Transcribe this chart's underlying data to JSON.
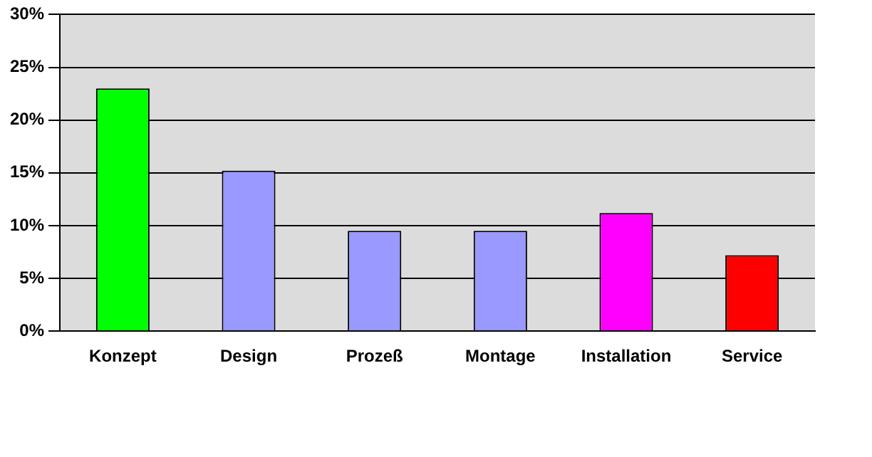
{
  "chart_data": {
    "type": "bar",
    "categories": [
      "Konzept",
      "Design",
      "Prozeß",
      "Montage",
      "Installation",
      "Service"
    ],
    "values": [
      23,
      15.2,
      9.5,
      9.5,
      11.2,
      7.2
    ],
    "colors": [
      "#00ff00",
      "#9999ff",
      "#9999ff",
      "#9999ff",
      "#ff00ff",
      "#ff0000"
    ],
    "ylim": [
      0,
      30
    ],
    "yticks": [
      {
        "value": 0,
        "label": "0%"
      },
      {
        "value": 5,
        "label": "5%"
      },
      {
        "value": 10,
        "label": "10%"
      },
      {
        "value": 15,
        "label": "15%"
      },
      {
        "value": 20,
        "label": "20%"
      },
      {
        "value": 25,
        "label": "25%"
      },
      {
        "value": 30,
        "label": "30%"
      }
    ],
    "grid": "y",
    "legend": false
  }
}
